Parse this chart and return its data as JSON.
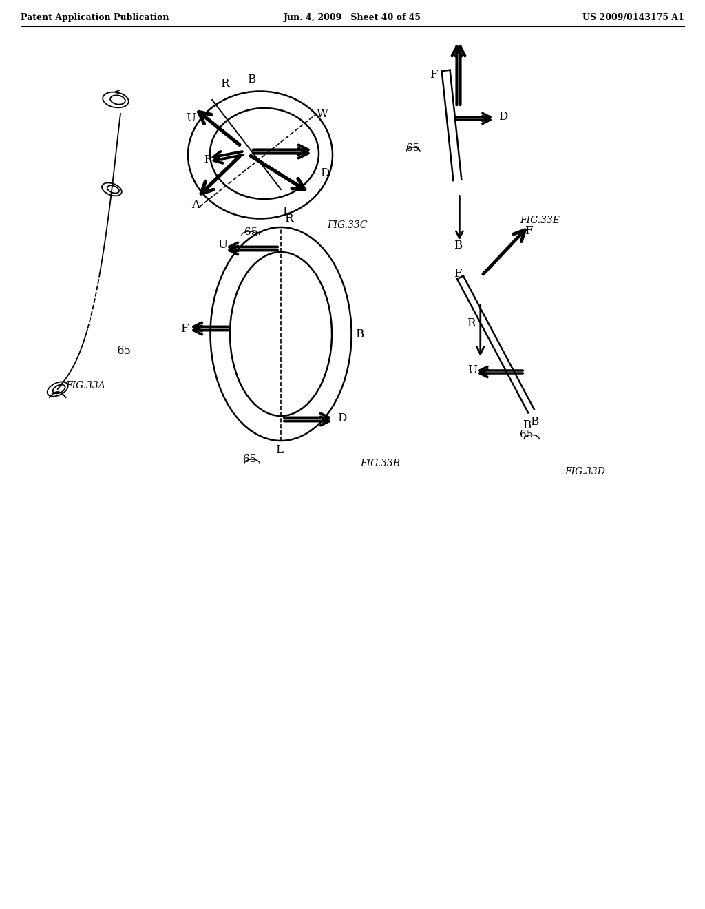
{
  "title_left": "Patent Application Publication",
  "title_mid": "Jun. 4, 2009   Sheet 40 of 45",
  "title_right": "US 2009/0143175 A1",
  "bg_color": "#ffffff",
  "text_color": "#000000"
}
